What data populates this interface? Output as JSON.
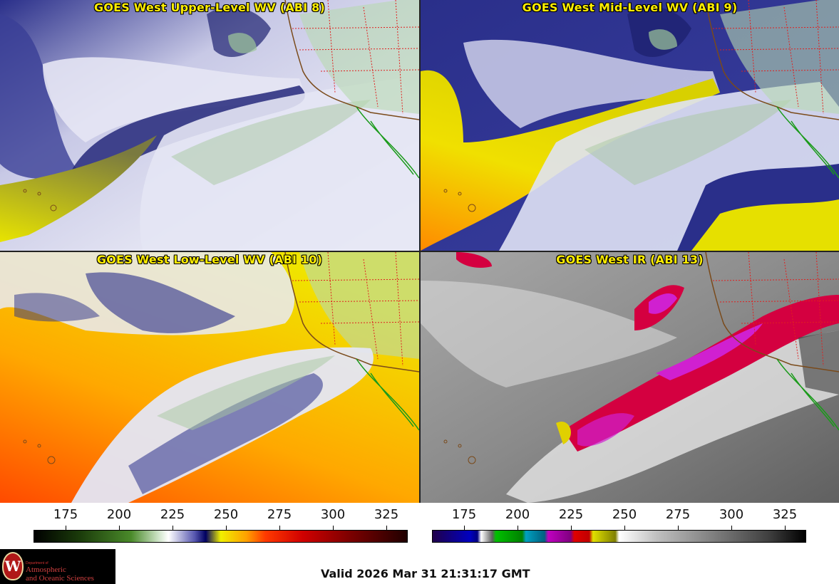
{
  "panels": [
    {
      "title": "GOES West Upper-Level WV (ABI 8)"
    },
    {
      "title": "GOES West Mid-Level WV (ABI 9)"
    },
    {
      "title": "GOES West Low-Level WV (ABI 10)"
    },
    {
      "title": "GOES West IR (ABI 13)"
    }
  ],
  "colorbars": [
    {
      "name": "wv-colorbar",
      "ticks": [
        "175",
        "200",
        "225",
        "250",
        "275",
        "300",
        "325"
      ],
      "range": [
        160,
        335
      ]
    },
    {
      "name": "ir-colorbar",
      "ticks": [
        "175",
        "200",
        "225",
        "250",
        "275",
        "300",
        "325"
      ],
      "range": [
        160,
        335
      ]
    }
  ],
  "logo": {
    "dept": "Department of",
    "line1": "Atmospheric",
    "line2": "and Oceanic Sciences",
    "seal": "W"
  },
  "valid_time": "Valid 2026 Mar 31 21:31:17 GMT",
  "colors": {
    "title_text": "#ffee00",
    "state_borders": "#e02020",
    "coastline": "#7a4a1a",
    "mexico_coast": "#1a9a1a"
  }
}
